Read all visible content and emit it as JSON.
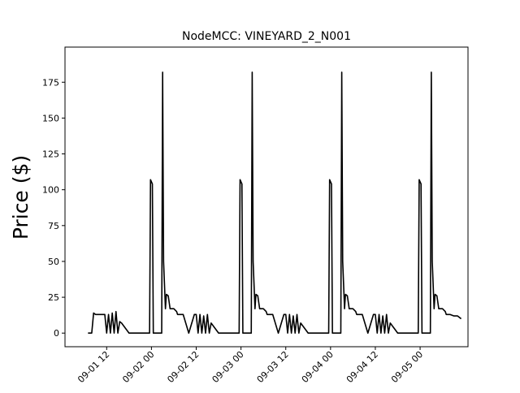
{
  "chart_data": {
    "type": "line",
    "title": "NodeMCC: VINEYARD_2_N001",
    "xlabel": "",
    "ylabel": "Price ($)",
    "xlim": [
      "2023-09-01 00:50",
      "2023-09-05 12:50"
    ],
    "ylim": [
      -9.5,
      199.5
    ],
    "grid": false,
    "line_color": "#000000",
    "x_ticks": [
      {
        "x": "2023-09-01 12:00",
        "label": "09-01 12"
      },
      {
        "x": "2023-09-02 00:00",
        "label": "09-02 00"
      },
      {
        "x": "2023-09-02 12:00",
        "label": "09-02 12"
      },
      {
        "x": "2023-09-03 00:00",
        "label": "09-03 00"
      },
      {
        "x": "2023-09-03 12:00",
        "label": "09-03 12"
      },
      {
        "x": "2023-09-04 00:00",
        "label": "09-04 00"
      },
      {
        "x": "2023-09-04 12:00",
        "label": "09-04 12"
      },
      {
        "x": "2023-09-05 00:00",
        "label": "09-05 00"
      }
    ],
    "y_ticks": [
      {
        "y": 0,
        "label": "0"
      },
      {
        "y": 25,
        "label": "25"
      },
      {
        "y": 50,
        "label": "50"
      },
      {
        "y": 75,
        "label": "75"
      },
      {
        "y": 100,
        "label": "100"
      },
      {
        "y": 125,
        "label": "125"
      },
      {
        "y": 150,
        "label": "150"
      },
      {
        "y": 175,
        "label": "175"
      }
    ],
    "series": [
      {
        "x": [
          "2023-09-01 07:00",
          "2023-09-01 08:00",
          "2023-09-01 08:30",
          "2023-09-01 09:00",
          "2023-09-01 09:30",
          "2023-09-01 10:00",
          "2023-09-01 11:30",
          "2023-09-01 12:00",
          "2023-09-01 12:30",
          "2023-09-01 13:00",
          "2023-09-01 13:30",
          "2023-09-01 14:00",
          "2023-09-01 14:30",
          "2023-09-01 15:00",
          "2023-09-01 15:30",
          "2023-09-01 16:00",
          "2023-09-01 18:00",
          "2023-09-01 23:30",
          "2023-09-01 23:45",
          "2023-09-02 00:15",
          "2023-09-02 00:30",
          "2023-09-02 01:30",
          "2023-09-02 02:45",
          "2023-09-02 03:00",
          "2023-09-02 03:15",
          "2023-09-02 03:45",
          "2023-09-02 04:00",
          "2023-09-02 04:30",
          "2023-09-02 05:00",
          "2023-09-02 06:00",
          "2023-09-02 06:45",
          "2023-09-02 07:00",
          "2023-09-02 08:30",
          "2023-09-02 10:00",
          "2023-09-02 11:30",
          "2023-09-02 12:00",
          "2023-09-02 12:30",
          "2023-09-02 13:00",
          "2023-09-02 13:30",
          "2023-09-02 14:00",
          "2023-09-02 14:30",
          "2023-09-02 15:00",
          "2023-09-02 15:30",
          "2023-09-02 16:00",
          "2023-09-02 18:00",
          "2023-09-02 23:30",
          "2023-09-02 23:45",
          "2023-09-03 00:15",
          "2023-09-03 00:30",
          "2023-09-03 01:30",
          "2023-09-03 02:45",
          "2023-09-03 03:00",
          "2023-09-03 03:15",
          "2023-09-03 03:45",
          "2023-09-03 04:00",
          "2023-09-03 04:30",
          "2023-09-03 05:00",
          "2023-09-03 06:00",
          "2023-09-03 06:45",
          "2023-09-03 07:00",
          "2023-09-03 08:30",
          "2023-09-03 10:00",
          "2023-09-03 11:30",
          "2023-09-03 12:00",
          "2023-09-03 12:30",
          "2023-09-03 13:00",
          "2023-09-03 13:30",
          "2023-09-03 14:00",
          "2023-09-03 14:30",
          "2023-09-03 15:00",
          "2023-09-03 15:30",
          "2023-09-03 16:00",
          "2023-09-03 18:00",
          "2023-09-03 23:30",
          "2023-09-03 23:45",
          "2023-09-04 00:15",
          "2023-09-04 00:30",
          "2023-09-04 01:30",
          "2023-09-04 02:45",
          "2023-09-04 03:00",
          "2023-09-04 03:15",
          "2023-09-04 03:45",
          "2023-09-04 04:00",
          "2023-09-04 04:30",
          "2023-09-04 05:00",
          "2023-09-04 06:00",
          "2023-09-04 06:45",
          "2023-09-04 07:00",
          "2023-09-04 08:30",
          "2023-09-04 10:00",
          "2023-09-04 11:30",
          "2023-09-04 12:00",
          "2023-09-04 12:30",
          "2023-09-04 13:00",
          "2023-09-04 13:30",
          "2023-09-04 14:00",
          "2023-09-04 14:30",
          "2023-09-04 15:00",
          "2023-09-04 15:30",
          "2023-09-04 16:00",
          "2023-09-04 18:00",
          "2023-09-04 23:30",
          "2023-09-04 23:45",
          "2023-09-05 00:15",
          "2023-09-05 00:30",
          "2023-09-05 01:30",
          "2023-09-05 02:45",
          "2023-09-05 03:00",
          "2023-09-05 03:15",
          "2023-09-05 03:45",
          "2023-09-05 04:00",
          "2023-09-05 04:30",
          "2023-09-05 05:00",
          "2023-09-05 06:00",
          "2023-09-05 06:45",
          "2023-09-05 07:00",
          "2023-09-05 08:00",
          "2023-09-05 09:00",
          "2023-09-05 10:00",
          "2023-09-05 11:00"
        ],
        "y": [
          0,
          0,
          14,
          13,
          13,
          13,
          13,
          0,
          13,
          0,
          14,
          0,
          15,
          0,
          8,
          7,
          0,
          0,
          107,
          104,
          0,
          0,
          0,
          182,
          50,
          17,
          27,
          26,
          17,
          17,
          15,
          13,
          13,
          0,
          13,
          13,
          0,
          13,
          0,
          12,
          0,
          13,
          0,
          7,
          0,
          0,
          107,
          104,
          0,
          0,
          0,
          182,
          50,
          17,
          27,
          26,
          17,
          17,
          15,
          13,
          13,
          0,
          13,
          13,
          0,
          13,
          0,
          12,
          0,
          13,
          0,
          7,
          0,
          0,
          107,
          104,
          0,
          0,
          0,
          182,
          50,
          17,
          27,
          26,
          17,
          17,
          15,
          13,
          13,
          0,
          13,
          13,
          0,
          13,
          0,
          12,
          0,
          13,
          0,
          7,
          0,
          0,
          107,
          104,
          0,
          0,
          0,
          182,
          50,
          17,
          27,
          26,
          17,
          17,
          15,
          13,
          13,
          12,
          12,
          10
        ]
      }
    ]
  }
}
